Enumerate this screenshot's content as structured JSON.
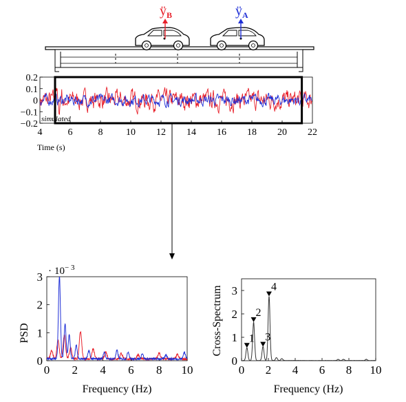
{
  "top": {
    "label_b_base": "ÿ",
    "label_b_sub": "B",
    "label_a_base": "ÿ",
    "label_a_sub": "A",
    "color_b": "#e8202a",
    "color_a": "#1f2fd6"
  },
  "signal_chart": {
    "type": "line",
    "annotation": "simulated",
    "xlabel": "Time (s)",
    "xlim": [
      4,
      22
    ],
    "ylim": [
      -0.2,
      0.2
    ],
    "xticks": [
      "4",
      "6",
      "8",
      "10",
      "12",
      "14",
      "16",
      "18",
      "20",
      "22"
    ],
    "yticks": [
      "0.2",
      "0.1",
      "0",
      "−0.1",
      "−0.2"
    ],
    "window": [
      5,
      21.3
    ],
    "series": [
      {
        "color": "#e8202a"
      },
      {
        "color": "#1f2fd6"
      }
    ]
  },
  "psd_chart": {
    "type": "line",
    "ylabel": "PSD",
    "xlabel": "Frequency (Hz)",
    "multiplier_dot": "·",
    "multiplier_base": "10",
    "multiplier_exp": "− 3",
    "xlim": [
      0,
      10
    ],
    "ylim": [
      0,
      3
    ],
    "xticks": [
      "0",
      "2",
      "4",
      "6",
      "8",
      "10"
    ],
    "yticks": [
      "3",
      "2",
      "1",
      "0"
    ],
    "series": [
      {
        "color": "#1f2fd6",
        "peaks": [
          [
            0.9,
            2.95
          ],
          [
            1.3,
            1.25
          ],
          [
            1.6,
            0.85
          ],
          [
            2.1,
            0.5
          ],
          [
            3.0,
            0.3
          ],
          [
            4.1,
            0.25
          ],
          [
            5.0,
            0.3
          ],
          [
            5.8,
            0.25
          ],
          [
            6.8,
            0.2
          ],
          [
            8.5,
            0.15
          ],
          [
            9.8,
            0.25
          ]
        ]
      },
      {
        "color": "#e8202a",
        "peaks": [
          [
            0.35,
            0.3
          ],
          [
            0.8,
            0.65
          ],
          [
            1.25,
            0.85
          ],
          [
            1.7,
            0.4
          ],
          [
            2.4,
            0.98
          ],
          [
            3.3,
            0.35
          ],
          [
            4.2,
            0.25
          ],
          [
            5.3,
            0.2
          ],
          [
            6.5,
            0.15
          ],
          [
            8.0,
            0.2
          ],
          [
            9.3,
            0.15
          ]
        ]
      }
    ]
  },
  "cross_chart": {
    "type": "line",
    "ylabel": "Cross-Spectrum",
    "xlabel": "Frequency (Hz)",
    "xlim": [
      0,
      10
    ],
    "ylim": [
      0,
      3.5
    ],
    "xticks": [
      "0",
      "2",
      "4",
      "6",
      "8",
      "10"
    ],
    "yticks": [
      "3",
      "2",
      "1",
      "0"
    ],
    "peaks": [
      {
        "label": "1",
        "x": 0.4,
        "y": 0.55
      },
      {
        "label": "2",
        "x": 0.9,
        "y": 1.65
      },
      {
        "label": "3",
        "x": 1.6,
        "y": 0.6
      },
      {
        "label": "4",
        "x": 2.05,
        "y": 2.75
      }
    ],
    "color": "#333333"
  }
}
